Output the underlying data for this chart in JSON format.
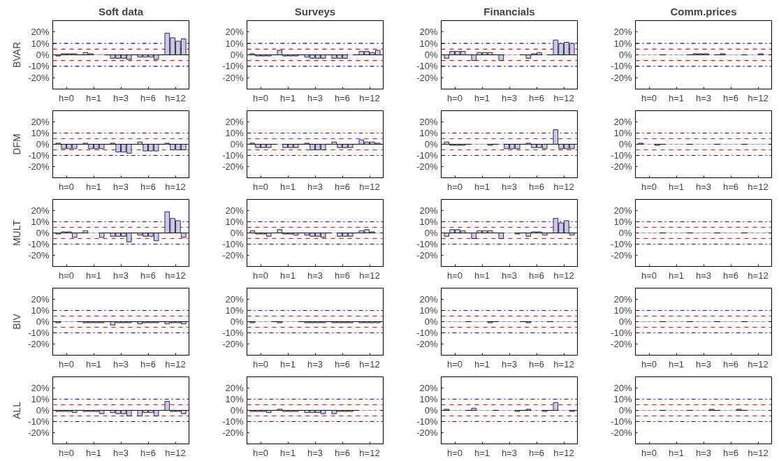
{
  "chart_data": [
    {
      "type": "bar",
      "title": "Soft data",
      "ylabel": "BVAR",
      "categories": [
        "h=0",
        "h=1",
        "h=3",
        "h=6",
        "h=12"
      ],
      "series": [
        {
          "color": "#c8c8f0",
          "values": [
            -1,
            2,
            -3,
            -2,
            19
          ]
        },
        {
          "color": "#c8c8f0",
          "values": [
            1,
            1,
            -3,
            -2,
            15
          ]
        },
        {
          "color": "#c8c8f0",
          "values": [
            1,
            0.5,
            -3,
            -2,
            12
          ]
        },
        {
          "color": "#c8c8f0",
          "values": [
            1,
            0.5,
            -4,
            -4,
            14
          ]
        }
      ],
      "ylim": [
        -30,
        30
      ],
      "yticks": [
        {
          "value": -20,
          "label": "-20%"
        },
        {
          "value": -10,
          "label": "-10%"
        },
        {
          "value": 0,
          "label": "0%"
        },
        {
          "value": 10,
          "label": "10%"
        },
        {
          "value": 20,
          "label": "20%"
        }
      ],
      "grid": false,
      "ref_lines": [
        {
          "axis": "y",
          "value": 10,
          "color": "#0000ff",
          "line_style": "dashdot"
        },
        {
          "axis": "y",
          "value": -10,
          "color": "#0000ff",
          "line_style": "dashdot"
        },
        {
          "axis": "y",
          "value": 5,
          "color": "#ff0000",
          "line_style": "dashed"
        },
        {
          "axis": "y",
          "value": -5,
          "color": "#ff0000",
          "line_style": "dashed"
        },
        {
          "axis": "y",
          "value": 0,
          "color": "#000000",
          "line_style": "solid"
        }
      ]
    },
    {
      "type": "bar",
      "title": "Surveys",
      "categories": [
        "h=0",
        "h=1",
        "h=3",
        "h=6",
        "h=12"
      ],
      "series": [
        {
          "color": "#c8c8f0",
          "values": [
            1,
            4,
            -2,
            -3,
            3
          ]
        },
        {
          "color": "#c8c8f0",
          "values": [
            -1,
            -1,
            -3,
            -3,
            3
          ]
        },
        {
          "color": "#c8c8f0",
          "values": [
            -1,
            -1,
            -3,
            -3,
            2
          ]
        },
        {
          "color": "#c8c8f0",
          "values": [
            -1,
            -1,
            -3,
            0,
            4
          ]
        }
      ],
      "ylim": [
        -30,
        30
      ],
      "yticks": [
        {
          "value": -20,
          "label": "-20%"
        },
        {
          "value": -10,
          "label": "-10%"
        },
        {
          "value": 0,
          "label": "0%"
        },
        {
          "value": 10,
          "label": "10%"
        },
        {
          "value": 20,
          "label": "20%"
        }
      ],
      "grid": false,
      "ref_lines": [
        {
          "axis": "y",
          "value": 10,
          "color": "#0000ff",
          "line_style": "dashdot"
        },
        {
          "axis": "y",
          "value": -10,
          "color": "#0000ff",
          "line_style": "dashdot"
        },
        {
          "axis": "y",
          "value": 5,
          "color": "#ff0000",
          "line_style": "dashed"
        },
        {
          "axis": "y",
          "value": -5,
          "color": "#ff0000",
          "line_style": "dashed"
        },
        {
          "axis": "y",
          "value": 0,
          "color": "#000000",
          "line_style": "solid"
        }
      ]
    },
    {
      "type": "bar",
      "title": "Financials",
      "categories": [
        "h=0",
        "h=1",
        "h=3",
        "h=6",
        "h=12"
      ],
      "series": [
        {
          "color": "#c8c8f0",
          "values": [
            -3,
            -5,
            -5,
            -3,
            13
          ]
        },
        {
          "color": "#c8c8f0",
          "values": [
            3,
            2,
            0,
            1,
            10
          ]
        },
        {
          "color": "#c8c8f0",
          "values": [
            3,
            2,
            0,
            2,
            11
          ]
        },
        {
          "color": "#c8c8f0",
          "values": [
            3,
            2,
            0,
            0,
            10
          ]
        }
      ],
      "ylim": [
        -30,
        30
      ],
      "yticks": [
        {
          "value": -20,
          "label": "-20%"
        },
        {
          "value": -10,
          "label": "-10%"
        },
        {
          "value": 0,
          "label": "0%"
        },
        {
          "value": 10,
          "label": "10%"
        },
        {
          "value": 20,
          "label": "20%"
        }
      ],
      "grid": false,
      "ref_lines": [
        {
          "axis": "y",
          "value": 10,
          "color": "#0000ff",
          "line_style": "dashdot"
        },
        {
          "axis": "y",
          "value": -10,
          "color": "#0000ff",
          "line_style": "dashdot"
        },
        {
          "axis": "y",
          "value": 5,
          "color": "#ff0000",
          "line_style": "dashed"
        },
        {
          "axis": "y",
          "value": -5,
          "color": "#ff0000",
          "line_style": "dashed"
        },
        {
          "axis": "y",
          "value": 0,
          "color": "#000000",
          "line_style": "solid"
        }
      ]
    },
    {
      "type": "bar",
      "title": "Comm.prices",
      "categories": [
        "h=0",
        "h=1",
        "h=3",
        "h=6",
        "h=12"
      ],
      "series": [
        {
          "color": "#c8c8f0",
          "values": [
            0,
            0,
            1,
            1,
            0
          ]
        },
        {
          "color": "#c8c8f0",
          "values": [
            0,
            0,
            1,
            0,
            0
          ]
        },
        {
          "color": "#c8c8f0",
          "values": [
            0,
            0,
            1,
            0,
            1
          ]
        },
        {
          "color": "#c8c8f0",
          "values": [
            0,
            0,
            0,
            0,
            0
          ]
        }
      ],
      "ylim": [
        -30,
        30
      ],
      "yticks": [
        {
          "value": -20,
          "label": "-20%"
        },
        {
          "value": -10,
          "label": "-10%"
        },
        {
          "value": 0,
          "label": "0%"
        },
        {
          "value": 10,
          "label": "10%"
        },
        {
          "value": 20,
          "label": "20%"
        }
      ],
      "grid": false,
      "ref_lines": [
        {
          "axis": "y",
          "value": 10,
          "color": "#0000ff",
          "line_style": "dashdot"
        },
        {
          "axis": "y",
          "value": -10,
          "color": "#0000ff",
          "line_style": "dashdot"
        },
        {
          "axis": "y",
          "value": 5,
          "color": "#ff0000",
          "line_style": "dashed"
        },
        {
          "axis": "y",
          "value": -5,
          "color": "#ff0000",
          "line_style": "dashed"
        },
        {
          "axis": "y",
          "value": 0,
          "color": "#000000",
          "line_style": "solid"
        }
      ]
    },
    {
      "type": "bar",
      "ylabel": "DFM",
      "categories": [
        "h=0",
        "h=1",
        "h=3",
        "h=6",
        "h=12"
      ],
      "series": [
        {
          "color": "#c8c8f0",
          "values": [
            1,
            1,
            1,
            2,
            1
          ]
        },
        {
          "color": "#c8c8f0",
          "values": [
            -4,
            -4,
            -7,
            -6,
            -5
          ]
        },
        {
          "color": "#c8c8f0",
          "values": [
            -4,
            -4,
            -7,
            -6,
            -5
          ]
        },
        {
          "color": "#c8c8f0",
          "values": [
            -4,
            -4,
            -8,
            -6,
            -5
          ]
        }
      ],
      "ylim": [
        -30,
        30
      ],
      "yticks": [
        {
          "value": -20,
          "label": "-20%"
        },
        {
          "value": -10,
          "label": "-10%"
        },
        {
          "value": 0,
          "label": "0%"
        },
        {
          "value": 10,
          "label": "10%"
        },
        {
          "value": 20,
          "label": "20%"
        }
      ],
      "grid": false,
      "ref_lines": [
        {
          "axis": "y",
          "value": 10,
          "color": "#0000ff",
          "line_style": "dashdot"
        },
        {
          "axis": "y",
          "value": -10,
          "color": "#0000ff",
          "line_style": "dashdot"
        },
        {
          "axis": "y",
          "value": 5,
          "color": "#ff0000",
          "line_style": "dashed"
        },
        {
          "axis": "y",
          "value": -5,
          "color": "#ff0000",
          "line_style": "dashed"
        },
        {
          "axis": "y",
          "value": 0,
          "color": "#000000",
          "line_style": "solid"
        }
      ]
    },
    {
      "type": "bar",
      "categories": [
        "h=0",
        "h=1",
        "h=3",
        "h=6",
        "h=12"
      ],
      "series": [
        {
          "color": "#c8c8f0",
          "values": [
            1,
            0,
            1,
            2,
            4
          ]
        },
        {
          "color": "#c8c8f0",
          "values": [
            -3,
            -3,
            -5,
            -3,
            2
          ]
        },
        {
          "color": "#c8c8f0",
          "values": [
            -3,
            -3,
            -5,
            -3,
            2
          ]
        },
        {
          "color": "#c8c8f0",
          "values": [
            -3,
            -3,
            -5,
            -3,
            1
          ]
        }
      ],
      "ylim": [
        -30,
        30
      ],
      "yticks": [
        {
          "value": -20,
          "label": "-20%"
        },
        {
          "value": -10,
          "label": "-10%"
        },
        {
          "value": 0,
          "label": "0%"
        },
        {
          "value": 10,
          "label": "10%"
        },
        {
          "value": 20,
          "label": "20%"
        }
      ],
      "grid": false,
      "ref_lines": [
        {
          "axis": "y",
          "value": 10,
          "color": "#0000ff",
          "line_style": "dashdot"
        },
        {
          "axis": "y",
          "value": -10,
          "color": "#0000ff",
          "line_style": "dashdot"
        },
        {
          "axis": "y",
          "value": 5,
          "color": "#ff0000",
          "line_style": "dashed"
        },
        {
          "axis": "y",
          "value": -5,
          "color": "#ff0000",
          "line_style": "dashed"
        },
        {
          "axis": "y",
          "value": 0,
          "color": "#000000",
          "line_style": "solid"
        }
      ]
    },
    {
      "type": "bar",
      "categories": [
        "h=0",
        "h=1",
        "h=3",
        "h=6",
        "h=12"
      ],
      "series": [
        {
          "color": "#c8c8f0",
          "values": [
            2,
            0,
            0,
            1,
            13
          ]
        },
        {
          "color": "#c8c8f0",
          "values": [
            -1,
            0,
            -4,
            -3,
            -4
          ]
        },
        {
          "color": "#c8c8f0",
          "values": [
            -1,
            0,
            -4,
            -3,
            -4
          ]
        },
        {
          "color": "#c8c8f0",
          "values": [
            -1,
            -1,
            -4,
            -4,
            -4
          ]
        }
      ],
      "ylim": [
        -30,
        30
      ],
      "yticks": [
        {
          "value": -20,
          "label": "-20%"
        },
        {
          "value": -10,
          "label": "-10%"
        },
        {
          "value": 0,
          "label": "0%"
        },
        {
          "value": 10,
          "label": "10%"
        },
        {
          "value": 20,
          "label": "20%"
        }
      ],
      "grid": false,
      "ref_lines": [
        {
          "axis": "y",
          "value": 10,
          "color": "#0000ff",
          "line_style": "dashdot"
        },
        {
          "axis": "y",
          "value": -10,
          "color": "#0000ff",
          "line_style": "dashdot"
        },
        {
          "axis": "y",
          "value": 5,
          "color": "#ff0000",
          "line_style": "dashed"
        },
        {
          "axis": "y",
          "value": -5,
          "color": "#ff0000",
          "line_style": "dashed"
        },
        {
          "axis": "y",
          "value": 0,
          "color": "#000000",
          "line_style": "solid"
        }
      ]
    },
    {
      "type": "bar",
      "categories": [
        "h=0",
        "h=1",
        "h=3",
        "h=6",
        "h=12"
      ],
      "series": [
        {
          "color": "#c8c8f0",
          "values": [
            1,
            0,
            0,
            0,
            0
          ]
        },
        {
          "color": "#c8c8f0",
          "values": [
            0,
            0,
            0,
            0,
            0
          ]
        },
        {
          "color": "#c8c8f0",
          "values": [
            0,
            0,
            0,
            0,
            0
          ]
        },
        {
          "color": "#c8c8f0",
          "values": [
            -1,
            0,
            0,
            0,
            0
          ]
        }
      ],
      "ylim": [
        -30,
        30
      ],
      "yticks": [
        {
          "value": -20,
          "label": "-20%"
        },
        {
          "value": -10,
          "label": "-10%"
        },
        {
          "value": 0,
          "label": "0%"
        },
        {
          "value": 10,
          "label": "10%"
        },
        {
          "value": 20,
          "label": "20%"
        }
      ],
      "grid": false,
      "ref_lines": [
        {
          "axis": "y",
          "value": 10,
          "color": "#0000ff",
          "line_style": "dashdot"
        },
        {
          "axis": "y",
          "value": -10,
          "color": "#0000ff",
          "line_style": "dashdot"
        },
        {
          "axis": "y",
          "value": 5,
          "color": "#ff0000",
          "line_style": "dashed"
        },
        {
          "axis": "y",
          "value": -5,
          "color": "#ff0000",
          "line_style": "dashed"
        },
        {
          "axis": "y",
          "value": 0,
          "color": "#000000",
          "line_style": "solid"
        }
      ]
    },
    {
      "type": "bar",
      "ylabel": "MULT",
      "categories": [
        "h=0",
        "h=1",
        "h=3",
        "h=6",
        "h=12"
      ],
      "series": [
        {
          "color": "#c8c8f0",
          "values": [
            -1,
            2,
            -3,
            -2,
            19
          ]
        },
        {
          "color": "#c8c8f0",
          "values": [
            1,
            0,
            -3,
            -3,
            13
          ]
        },
        {
          "color": "#c8c8f0",
          "values": [
            1,
            0,
            -3,
            -3,
            11
          ]
        },
        {
          "color": "#c8c8f0",
          "values": [
            -4,
            -4,
            -8,
            -7,
            -4
          ]
        }
      ],
      "ylim": [
        -30,
        30
      ],
      "yticks": [
        {
          "value": -20,
          "label": "-20%"
        },
        {
          "value": -10,
          "label": "-10%"
        },
        {
          "value": 0,
          "label": "0%"
        },
        {
          "value": 10,
          "label": "10%"
        },
        {
          "value": 20,
          "label": "20%"
        }
      ],
      "grid": false,
      "ref_lines": [
        {
          "axis": "y",
          "value": 10,
          "color": "#0000ff",
          "line_style": "dashdot"
        },
        {
          "axis": "y",
          "value": -10,
          "color": "#0000ff",
          "line_style": "dashdot"
        },
        {
          "axis": "y",
          "value": 5,
          "color": "#ff0000",
          "line_style": "dashed"
        },
        {
          "axis": "y",
          "value": -5,
          "color": "#ff0000",
          "line_style": "dashed"
        },
        {
          "axis": "y",
          "value": 0,
          "color": "#000000",
          "line_style": "solid"
        }
      ]
    },
    {
      "type": "bar",
      "categories": [
        "h=0",
        "h=1",
        "h=3",
        "h=6",
        "h=12"
      ],
      "series": [
        {
          "color": "#c8c8f0",
          "values": [
            2,
            3,
            -2,
            0,
            2
          ]
        },
        {
          "color": "#c8c8f0",
          "values": [
            -1,
            -1,
            -3,
            -3,
            3
          ]
        },
        {
          "color": "#c8c8f0",
          "values": [
            -1,
            -1,
            -3,
            -3,
            1
          ]
        },
        {
          "color": "#c8c8f0",
          "values": [
            -3,
            -2,
            -4,
            -3,
            0
          ]
        }
      ],
      "ylim": [
        -30,
        30
      ],
      "yticks": [
        {
          "value": -20,
          "label": "-20%"
        },
        {
          "value": -10,
          "label": "-10%"
        },
        {
          "value": 0,
          "label": "0%"
        },
        {
          "value": 10,
          "label": "10%"
        },
        {
          "value": 20,
          "label": "20%"
        }
      ],
      "grid": false,
      "ref_lines": [
        {
          "axis": "y",
          "value": 10,
          "color": "#0000ff",
          "line_style": "dashdot"
        },
        {
          "axis": "y",
          "value": -10,
          "color": "#0000ff",
          "line_style": "dashdot"
        },
        {
          "axis": "y",
          "value": 5,
          "color": "#ff0000",
          "line_style": "dashed"
        },
        {
          "axis": "y",
          "value": -5,
          "color": "#ff0000",
          "line_style": "dashed"
        },
        {
          "axis": "y",
          "value": 0,
          "color": "#000000",
          "line_style": "solid"
        }
      ]
    },
    {
      "type": "bar",
      "categories": [
        "h=0",
        "h=1",
        "h=3",
        "h=6",
        "h=12"
      ],
      "series": [
        {
          "color": "#c8c8f0",
          "values": [
            -3,
            -5,
            -5,
            -3,
            13
          ]
        },
        {
          "color": "#c8c8f0",
          "values": [
            3,
            2,
            0,
            1,
            9
          ]
        },
        {
          "color": "#c8c8f0",
          "values": [
            3,
            2,
            0,
            1,
            11
          ]
        },
        {
          "color": "#c8c8f0",
          "values": [
            2,
            2,
            -1,
            -2,
            -2
          ]
        }
      ],
      "ylim": [
        -30,
        30
      ],
      "yticks": [
        {
          "value": -20,
          "label": "-20%"
        },
        {
          "value": -10,
          "label": "-10%"
        },
        {
          "value": 0,
          "label": "0%"
        },
        {
          "value": 10,
          "label": "10%"
        },
        {
          "value": 20,
          "label": "20%"
        }
      ],
      "grid": false,
      "ref_lines": [
        {
          "axis": "y",
          "value": 10,
          "color": "#0000ff",
          "line_style": "dashdot"
        },
        {
          "axis": "y",
          "value": -10,
          "color": "#0000ff",
          "line_style": "dashdot"
        },
        {
          "axis": "y",
          "value": 5,
          "color": "#ff0000",
          "line_style": "dashed"
        },
        {
          "axis": "y",
          "value": -5,
          "color": "#ff0000",
          "line_style": "dashed"
        },
        {
          "axis": "y",
          "value": 0,
          "color": "#000000",
          "line_style": "solid"
        }
      ]
    },
    {
      "type": "bar",
      "categories": [
        "h=0",
        "h=1",
        "h=3",
        "h=6",
        "h=12"
      ],
      "series": [
        {
          "color": "#c8c8f0",
          "values": [
            0,
            0,
            0,
            0.5,
            0.5
          ]
        },
        {
          "color": "#c8c8f0",
          "values": [
            0,
            0,
            0,
            0,
            0
          ]
        },
        {
          "color": "#c8c8f0",
          "values": [
            0,
            0,
            0.5,
            0,
            0
          ]
        },
        {
          "color": "#c8c8f0",
          "values": [
            0,
            0.5,
            0,
            0,
            0.5
          ]
        }
      ],
      "ylim": [
        -30,
        30
      ],
      "yticks": [
        {
          "value": -20,
          "label": "-20%"
        },
        {
          "value": -10,
          "label": "-10%"
        },
        {
          "value": 0,
          "label": "0%"
        },
        {
          "value": 10,
          "label": "10%"
        },
        {
          "value": 20,
          "label": "20%"
        }
      ],
      "grid": false,
      "ref_lines": [
        {
          "axis": "y",
          "value": 10,
          "color": "#0000ff",
          "line_style": "dashdot"
        },
        {
          "axis": "y",
          "value": -10,
          "color": "#0000ff",
          "line_style": "dashdot"
        },
        {
          "axis": "y",
          "value": 5,
          "color": "#ff0000",
          "line_style": "dashed"
        },
        {
          "axis": "y",
          "value": -5,
          "color": "#ff0000",
          "line_style": "dashed"
        },
        {
          "axis": "y",
          "value": 0,
          "color": "#000000",
          "line_style": "solid"
        }
      ]
    },
    {
      "type": "bar",
      "ylabel": "BIV",
      "categories": [
        "h=0",
        "h=1",
        "h=3",
        "h=6",
        "h=12"
      ],
      "series": [
        {
          "color": "#c8c8f0",
          "values": [
            -1,
            -1,
            -3,
            -2,
            -2
          ]
        },
        {
          "color": "#c8c8f0",
          "values": [
            0,
            -1,
            -1,
            -1,
            -1
          ]
        },
        {
          "color": "#c8c8f0",
          "values": [
            0,
            -1,
            -1,
            -1,
            -1
          ]
        },
        {
          "color": "#c8c8f0",
          "values": [
            0,
            -1,
            -1,
            -1,
            -2
          ]
        }
      ],
      "ylim": [
        -30,
        30
      ],
      "yticks": [
        {
          "value": -20,
          "label": "-20%"
        },
        {
          "value": -10,
          "label": "-10%"
        },
        {
          "value": 0,
          "label": "0%"
        },
        {
          "value": 10,
          "label": "10%"
        },
        {
          "value": 20,
          "label": "20%"
        }
      ],
      "grid": false,
      "ref_lines": [
        {
          "axis": "y",
          "value": 10,
          "color": "#0000ff",
          "line_style": "dashdot"
        },
        {
          "axis": "y",
          "value": -10,
          "color": "#0000ff",
          "line_style": "dashdot"
        },
        {
          "axis": "y",
          "value": 5,
          "color": "#ff0000",
          "line_style": "dashed"
        },
        {
          "axis": "y",
          "value": -5,
          "color": "#ff0000",
          "line_style": "dashed"
        },
        {
          "axis": "y",
          "value": 0,
          "color": "#000000",
          "line_style": "solid"
        }
      ]
    },
    {
      "type": "bar",
      "categories": [
        "h=0",
        "h=1",
        "h=3",
        "h=6",
        "h=12"
      ],
      "series": [
        {
          "color": "#c8c8f0",
          "values": [
            -1,
            -1,
            -1,
            -1,
            -1
          ]
        },
        {
          "color": "#c8c8f0",
          "values": [
            0,
            0,
            -1,
            -1,
            -1
          ]
        },
        {
          "color": "#c8c8f0",
          "values": [
            0,
            0,
            -1,
            -1,
            -1
          ]
        },
        {
          "color": "#c8c8f0",
          "values": [
            0,
            0,
            -1,
            -1,
            -1
          ]
        }
      ],
      "ylim": [
        -30,
        30
      ],
      "yticks": [
        {
          "value": -20,
          "label": "-20%"
        },
        {
          "value": -10,
          "label": "-10%"
        },
        {
          "value": 0,
          "label": "0%"
        },
        {
          "value": 10,
          "label": "10%"
        },
        {
          "value": 20,
          "label": "20%"
        }
      ],
      "grid": false,
      "ref_lines": [
        {
          "axis": "y",
          "value": 10,
          "color": "#0000ff",
          "line_style": "dashdot"
        },
        {
          "axis": "y",
          "value": -10,
          "color": "#0000ff",
          "line_style": "dashdot"
        },
        {
          "axis": "y",
          "value": 5,
          "color": "#ff0000",
          "line_style": "dashed"
        },
        {
          "axis": "y",
          "value": -5,
          "color": "#ff0000",
          "line_style": "dashed"
        },
        {
          "axis": "y",
          "value": 0,
          "color": "#000000",
          "line_style": "solid"
        }
      ]
    },
    {
      "type": "bar",
      "categories": [
        "h=0",
        "h=1",
        "h=3",
        "h=6",
        "h=12"
      ],
      "series": [
        {
          "color": "#c8c8f0",
          "values": [
            0,
            0,
            0,
            -1,
            0
          ]
        },
        {
          "color": "#c8c8f0",
          "values": [
            0,
            0,
            0,
            0,
            0
          ]
        },
        {
          "color": "#c8c8f0",
          "values": [
            0,
            0,
            0,
            0,
            0
          ]
        },
        {
          "color": "#c8c8f0",
          "values": [
            0,
            -1,
            0,
            0,
            0
          ]
        }
      ],
      "ylim": [
        -30,
        30
      ],
      "yticks": [
        {
          "value": -20,
          "label": "-20%"
        },
        {
          "value": -10,
          "label": "-10%"
        },
        {
          "value": 0,
          "label": "0%"
        },
        {
          "value": 10,
          "label": "10%"
        },
        {
          "value": 20,
          "label": "20%"
        }
      ],
      "grid": false,
      "ref_lines": [
        {
          "axis": "y",
          "value": 10,
          "color": "#0000ff",
          "line_style": "dashdot"
        },
        {
          "axis": "y",
          "value": -10,
          "color": "#0000ff",
          "line_style": "dashdot"
        },
        {
          "axis": "y",
          "value": 5,
          "color": "#ff0000",
          "line_style": "dashed"
        },
        {
          "axis": "y",
          "value": -5,
          "color": "#ff0000",
          "line_style": "dashed"
        },
        {
          "axis": "y",
          "value": 0,
          "color": "#000000",
          "line_style": "solid"
        }
      ]
    },
    {
      "type": "bar",
      "categories": [
        "h=0",
        "h=1",
        "h=3",
        "h=6",
        "h=12"
      ],
      "series": [
        {
          "color": "#c8c8f0",
          "values": [
            0,
            0,
            0,
            0,
            0
          ]
        },
        {
          "color": "#c8c8f0",
          "values": [
            0,
            0,
            0,
            0,
            0
          ]
        },
        {
          "color": "#c8c8f0",
          "values": [
            0,
            0,
            0,
            0,
            0
          ]
        },
        {
          "color": "#c8c8f0",
          "values": [
            0,
            0,
            0,
            0,
            0
          ]
        }
      ],
      "ylim": [
        -30,
        30
      ],
      "yticks": [
        {
          "value": -20,
          "label": "-20%"
        },
        {
          "value": -10,
          "label": "-10%"
        },
        {
          "value": 0,
          "label": "0%"
        },
        {
          "value": 10,
          "label": "10%"
        },
        {
          "value": 20,
          "label": "20%"
        }
      ],
      "grid": false,
      "ref_lines": [
        {
          "axis": "y",
          "value": 10,
          "color": "#0000ff",
          "line_style": "dashdot"
        },
        {
          "axis": "y",
          "value": -10,
          "color": "#0000ff",
          "line_style": "dashdot"
        },
        {
          "axis": "y",
          "value": 5,
          "color": "#ff0000",
          "line_style": "dashed"
        },
        {
          "axis": "y",
          "value": -5,
          "color": "#ff0000",
          "line_style": "dashed"
        },
        {
          "axis": "y",
          "value": 0,
          "color": "#000000",
          "line_style": "solid"
        }
      ]
    },
    {
      "type": "bar",
      "ylabel": "ALL",
      "categories": [
        "h=0",
        "h=1",
        "h=3",
        "h=6",
        "h=12"
      ],
      "series": [
        {
          "color": "#c8c8f0",
          "values": [
            -1,
            -1,
            -2,
            -5,
            8
          ]
        },
        {
          "color": "#c8c8f0",
          "values": [
            -1,
            -1,
            -3,
            -2,
            -1
          ]
        },
        {
          "color": "#c8c8f0",
          "values": [
            -1,
            -1,
            -3,
            -2,
            -1
          ]
        },
        {
          "color": "#c8c8f0",
          "values": [
            -2,
            -3,
            -5,
            -5,
            -3
          ]
        }
      ],
      "ylim": [
        -30,
        30
      ],
      "yticks": [
        {
          "value": -20,
          "label": "-20%"
        },
        {
          "value": -10,
          "label": "-10%"
        },
        {
          "value": 0,
          "label": "0%"
        },
        {
          "value": 10,
          "label": "10%"
        },
        {
          "value": 20,
          "label": "20%"
        }
      ],
      "grid": false,
      "ref_lines": [
        {
          "axis": "y",
          "value": 10,
          "color": "#0000ff",
          "line_style": "dashdot"
        },
        {
          "axis": "y",
          "value": -10,
          "color": "#0000ff",
          "line_style": "dashdot"
        },
        {
          "axis": "y",
          "value": 5,
          "color": "#ff0000",
          "line_style": "dashed"
        },
        {
          "axis": "y",
          "value": -5,
          "color": "#ff0000",
          "line_style": "dashed"
        },
        {
          "axis": "y",
          "value": 0,
          "color": "#000000",
          "line_style": "solid"
        }
      ]
    },
    {
      "type": "bar",
      "categories": [
        "h=0",
        "h=1",
        "h=3",
        "h=6",
        "h=12"
      ],
      "series": [
        {
          "color": "#c8c8f0",
          "values": [
            -1,
            1,
            -2,
            -3,
            0
          ]
        },
        {
          "color": "#c8c8f0",
          "values": [
            -1,
            -1,
            -2,
            -1,
            0
          ]
        },
        {
          "color": "#c8c8f0",
          "values": [
            -1,
            -1,
            -2,
            -1,
            0
          ]
        },
        {
          "color": "#c8c8f0",
          "values": [
            -2,
            -1,
            -3,
            -1,
            0
          ]
        }
      ],
      "ylim": [
        -30,
        30
      ],
      "yticks": [
        {
          "value": -20,
          "label": "-20%"
        },
        {
          "value": -10,
          "label": "-10%"
        },
        {
          "value": 0,
          "label": "0%"
        },
        {
          "value": 10,
          "label": "10%"
        },
        {
          "value": 20,
          "label": "20%"
        }
      ],
      "grid": false,
      "ref_lines": [
        {
          "axis": "y",
          "value": 10,
          "color": "#0000ff",
          "line_style": "dashdot"
        },
        {
          "axis": "y",
          "value": -10,
          "color": "#0000ff",
          "line_style": "dashdot"
        },
        {
          "axis": "y",
          "value": 5,
          "color": "#ff0000",
          "line_style": "dashed"
        },
        {
          "axis": "y",
          "value": -5,
          "color": "#ff0000",
          "line_style": "dashed"
        },
        {
          "axis": "y",
          "value": 0,
          "color": "#000000",
          "line_style": "solid"
        }
      ]
    },
    {
      "type": "bar",
      "categories": [
        "h=0",
        "h=1",
        "h=3",
        "h=6",
        "h=12"
      ],
      "series": [
        {
          "color": "#c8c8f0",
          "values": [
            1,
            2,
            0,
            1,
            7
          ]
        },
        {
          "color": "#c8c8f0",
          "values": [
            0,
            0,
            0,
            0,
            0
          ]
        },
        {
          "color": "#c8c8f0",
          "values": [
            0,
            0,
            0,
            0,
            0
          ]
        },
        {
          "color": "#c8c8f0",
          "values": [
            0,
            0,
            -1,
            -1,
            -1
          ]
        }
      ],
      "ylim": [
        -30,
        30
      ],
      "yticks": [
        {
          "value": -20,
          "label": "-20%"
        },
        {
          "value": -10,
          "label": "-10%"
        },
        {
          "value": 0,
          "label": "0%"
        },
        {
          "value": 10,
          "label": "10%"
        },
        {
          "value": 20,
          "label": "20%"
        }
      ],
      "grid": false,
      "ref_lines": [
        {
          "axis": "y",
          "value": 10,
          "color": "#0000ff",
          "line_style": "dashdot"
        },
        {
          "axis": "y",
          "value": -10,
          "color": "#0000ff",
          "line_style": "dashdot"
        },
        {
          "axis": "y",
          "value": 5,
          "color": "#ff0000",
          "line_style": "dashed"
        },
        {
          "axis": "y",
          "value": -5,
          "color": "#ff0000",
          "line_style": "dashed"
        },
        {
          "axis": "y",
          "value": 0,
          "color": "#000000",
          "line_style": "solid"
        }
      ]
    },
    {
      "type": "bar",
      "categories": [
        "h=0",
        "h=1",
        "h=3",
        "h=6",
        "h=12"
      ],
      "series": [
        {
          "color": "#c8c8f0",
          "values": [
            0,
            0,
            0,
            0,
            0
          ]
        },
        {
          "color": "#c8c8f0",
          "values": [
            0,
            0,
            0,
            0,
            0
          ]
        },
        {
          "color": "#c8c8f0",
          "values": [
            0,
            0,
            0,
            0,
            0
          ]
        },
        {
          "color": "#c8c8f0",
          "values": [
            0,
            0,
            1,
            1,
            0
          ]
        }
      ],
      "ylim": [
        -30,
        30
      ],
      "yticks": [
        {
          "value": -20,
          "label": "-20%"
        },
        {
          "value": -10,
          "label": "-10%"
        },
        {
          "value": 0,
          "label": "0%"
        },
        {
          "value": 10,
          "label": "10%"
        },
        {
          "value": 20,
          "label": "20%"
        }
      ],
      "grid": false,
      "ref_lines": [
        {
          "axis": "y",
          "value": 10,
          "color": "#0000ff",
          "line_style": "dashdot"
        },
        {
          "axis": "y",
          "value": -10,
          "color": "#0000ff",
          "line_style": "dashdot"
        },
        {
          "axis": "y",
          "value": 5,
          "color": "#ff0000",
          "line_style": "dashed"
        },
        {
          "axis": "y",
          "value": -5,
          "color": "#ff0000",
          "line_style": "dashed"
        },
        {
          "axis": "y",
          "value": 0,
          "color": "#000000",
          "line_style": "solid"
        }
      ]
    }
  ]
}
